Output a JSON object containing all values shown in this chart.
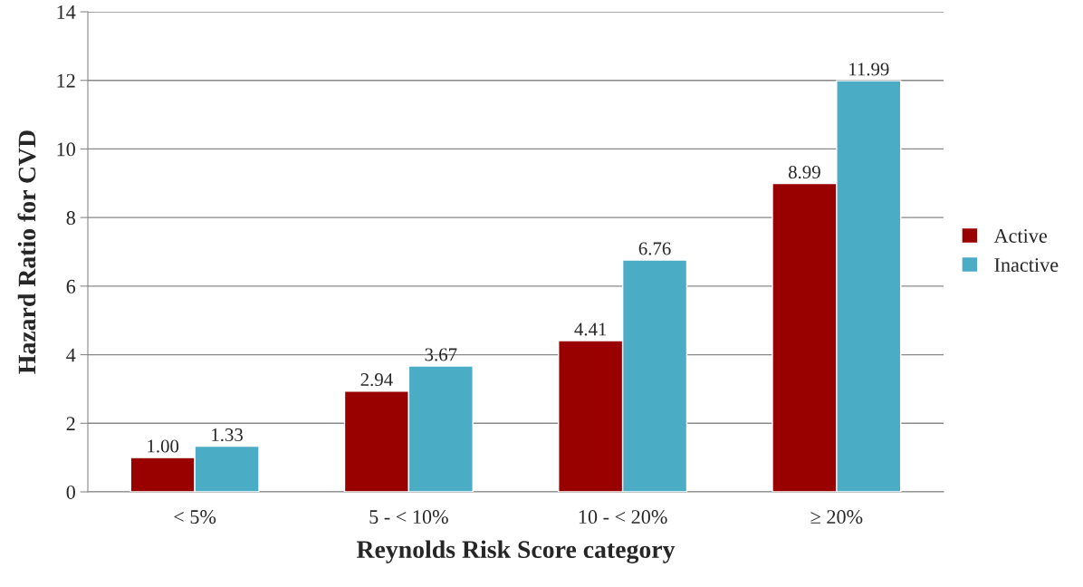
{
  "chart_data": {
    "type": "bar",
    "xlabel": "Reynolds Risk Score category",
    "ylabel": "Hazard Ratio for CVD",
    "categories": [
      "< 5%",
      "5 - < 10%",
      "10 - < 20%",
      "≥ 20%"
    ],
    "series": [
      {
        "name": "Active",
        "color": "#990000",
        "values": [
          1.0,
          2.94,
          4.41,
          8.99
        ],
        "value_labels": [
          "1.00",
          "2.94",
          "4.41",
          "8.99"
        ]
      },
      {
        "name": "Inactive",
        "color": "#4bacc6",
        "values": [
          1.33,
          3.67,
          6.76,
          11.99
        ],
        "value_labels": [
          "1.33",
          "3.67",
          "6.76",
          "11.99"
        ]
      }
    ],
    "ylim": [
      0,
      14
    ],
    "yticks": [
      0,
      2,
      4,
      6,
      8,
      10,
      12,
      14
    ],
    "grid": "y",
    "legend": "right"
  }
}
